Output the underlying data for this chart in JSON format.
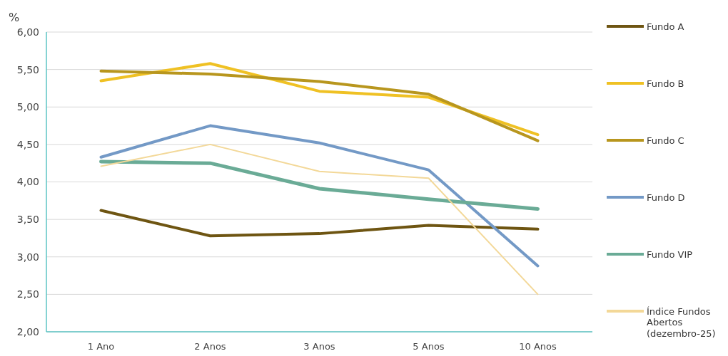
{
  "chart_data": {
    "type": "line",
    "ylabel": "%",
    "categories": [
      "1 Ano",
      "2 Anos",
      "3 Anos",
      "5 Anos",
      "10 Anos"
    ],
    "series": [
      {
        "name": "Fundo A",
        "color": "#6e5512",
        "values": [
          3.62,
          3.28,
          3.31,
          3.42,
          3.37
        ]
      },
      {
        "name": "Fundo B",
        "color": "#efc124",
        "values": [
          5.35,
          5.58,
          5.21,
          5.13,
          4.63
        ]
      },
      {
        "name": "Fundo C",
        "color": "#b8961e",
        "values": [
          5.48,
          5.44,
          5.34,
          5.17,
          4.55
        ]
      },
      {
        "name": "Fundo D",
        "color": "#7399c6",
        "values": [
          4.33,
          4.75,
          4.52,
          4.16,
          2.88
        ]
      },
      {
        "name": "Fundo VIP",
        "color": "#6aab96",
        "values": [
          4.27,
          4.25,
          3.91,
          3.77,
          3.64
        ]
      },
      {
        "name": "Índice Fundos Abertos (dezembro-25)",
        "color": "#f3d898",
        "values": [
          4.21,
          4.5,
          4.14,
          4.05,
          2.5
        ]
      }
    ],
    "ylim": [
      2,
      6
    ],
    "yticks": [
      {
        "value": 2,
        "label": "2,00"
      },
      {
        "value": 2.5,
        "label": "2,50"
      },
      {
        "value": 3,
        "label": "3,00"
      },
      {
        "value": 3.5,
        "label": "3,50"
      },
      {
        "value": 4,
        "label": "4,00"
      },
      {
        "value": 4.5,
        "label": "4,50"
      },
      {
        "value": 5,
        "label": "5,00"
      },
      {
        "value": 5.5,
        "label": "5,50"
      },
      {
        "value": 6,
        "label": "6,00"
      }
    ],
    "grid": "y",
    "legend": "right",
    "marker": "none",
    "line_style": "solid"
  }
}
